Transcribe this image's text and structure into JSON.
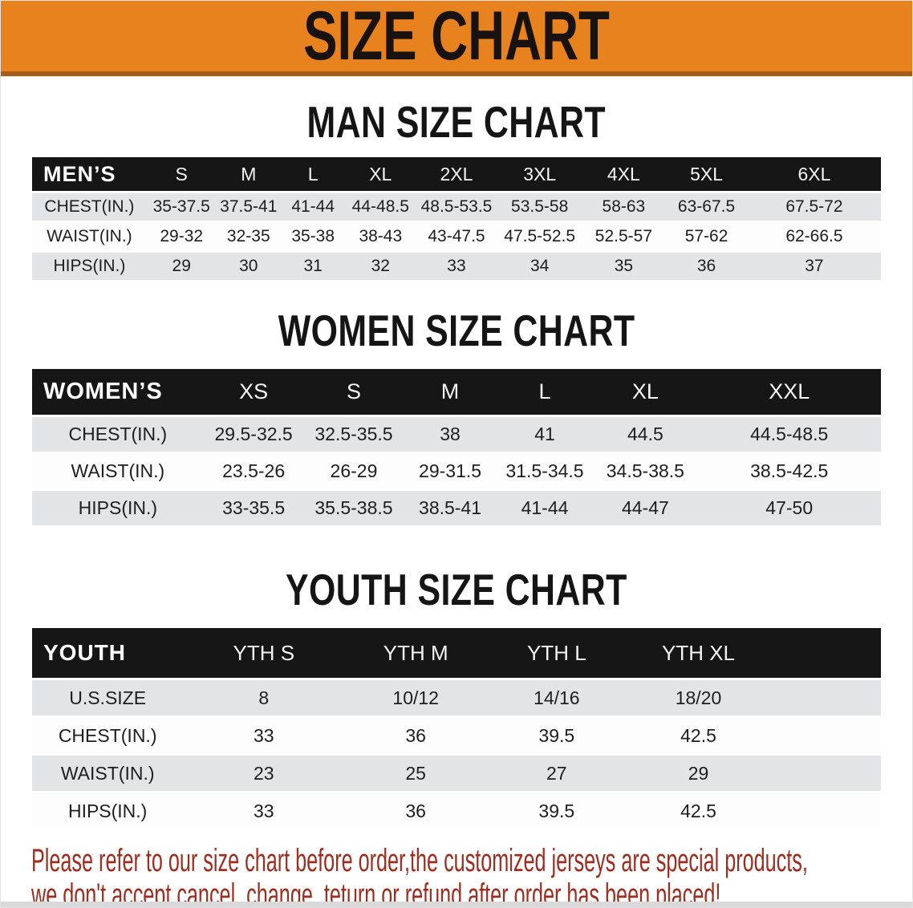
{
  "banner": {
    "title": "SIZE CHART",
    "bg_color": "#E8821E",
    "edge_color": "#A85C15",
    "text_color": "#181310"
  },
  "sections": [
    {
      "heading": "MAN SIZE CHART",
      "label": "MEN’S",
      "columns": [
        "S",
        "M",
        "L",
        "XL",
        "2XL",
        "3XL",
        "4XL",
        "5XL",
        "6XL"
      ],
      "rows": [
        {
          "label": "CHEST(IN.)",
          "values": [
            "35-37.5",
            "37.5-41",
            "41-44",
            "44-48.5",
            "48.5-53.5",
            "53.5-58",
            "58-63",
            "63-67.5",
            "67.5-72"
          ]
        },
        {
          "label": "WAIST(IN.)",
          "values": [
            "29-32",
            "32-35",
            "35-38",
            "38-43",
            "43-47.5",
            "47.5-52.5",
            "52.5-57",
            "57-62",
            "62-66.5"
          ]
        },
        {
          "label": "HIPS(IN.)",
          "values": [
            "29",
            "30",
            "31",
            "32",
            "33",
            "34",
            "35",
            "36",
            "37"
          ]
        }
      ]
    },
    {
      "heading": "WOMEN SIZE CHART",
      "label": "WOMEN’S",
      "columns": [
        "XS",
        "S",
        "M",
        "L",
        "XL",
        "XXL"
      ],
      "rows": [
        {
          "label": "CHEST(IN.)",
          "values": [
            "29.5-32.5",
            "32.5-35.5",
            "38",
            "41",
            "44.5",
            "44.5-48.5"
          ]
        },
        {
          "label": "WAIST(IN.)",
          "values": [
            "23.5-26",
            "26-29",
            "29-31.5",
            "31.5-34.5",
            "34.5-38.5",
            "38.5-42.5"
          ]
        },
        {
          "label": "HIPS(IN.)",
          "values": [
            "33-35.5",
            "35.5-38.5",
            "38.5-41",
            "41-44",
            "44-47",
            "47-50"
          ]
        }
      ]
    },
    {
      "heading": "YOUTH SIZE CHART",
      "label": "YOUTH",
      "columns": [
        "YTH S",
        "YTH M",
        "YTH L",
        "YTH XL"
      ],
      "rows": [
        {
          "label": "U.S.SIZE",
          "values": [
            "8",
            "10/12",
            "14/16",
            "18/20"
          ]
        },
        {
          "label": "CHEST(IN.)",
          "values": [
            "33",
            "36",
            "39.5",
            "42.5"
          ]
        },
        {
          "label": "WAIST(IN.)",
          "values": [
            "23",
            "25",
            "27",
            "29"
          ]
        },
        {
          "label": "HIPS(IN.)",
          "values": [
            "33",
            "36",
            "39.5",
            "42.5"
          ]
        }
      ]
    }
  ],
  "disclaimer": {
    "line1": "Please refer to our size chart before order,the customized jerseys are special products,",
    "line2": "we don't accept cancel, change, teturn or refund after order has been placed!",
    "text_color": "#9E2D20"
  },
  "table_colors": {
    "header_band": "#161616",
    "row_gray": "#E2E4E6",
    "row_white": "#FDFDFD"
  }
}
